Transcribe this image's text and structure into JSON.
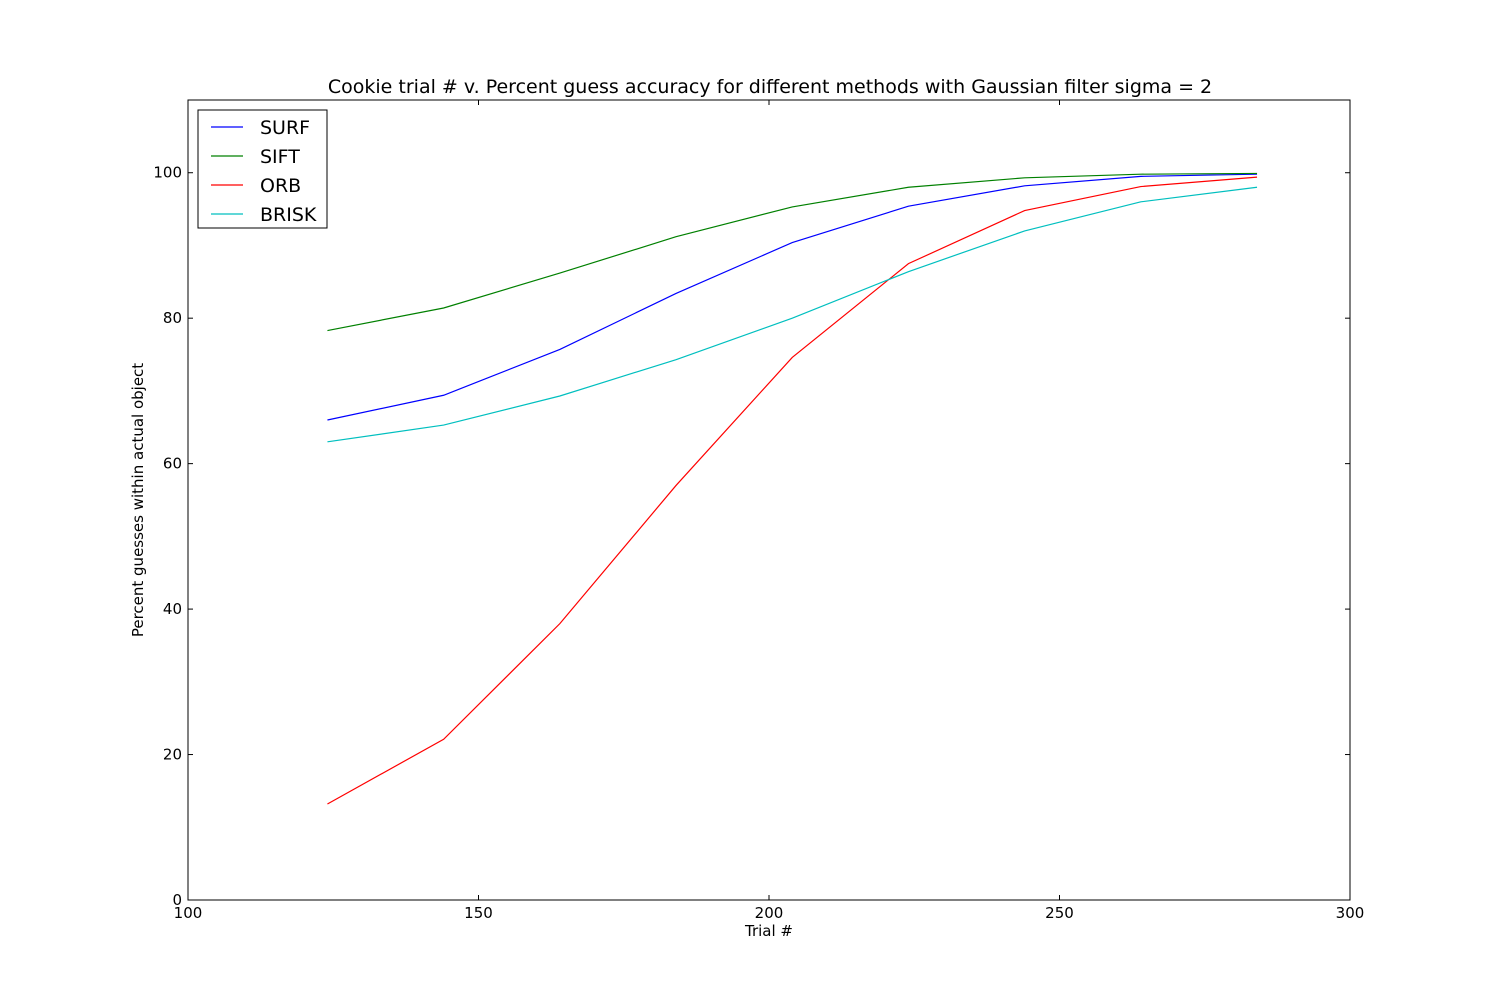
{
  "chart_data": {
    "type": "line",
    "title": "Cookie trial # v. Percent guess accuracy for different methods with Gaussian filter sigma = 2",
    "xlabel": "Trial #",
    "ylabel": "Percent guesses within actual object",
    "xlim": [
      100,
      300
    ],
    "ylim": [
      0,
      110
    ],
    "xticks": [
      100,
      150,
      200,
      250,
      300
    ],
    "yticks": [
      0,
      20,
      40,
      60,
      80,
      100
    ],
    "grid": false,
    "legend_position": "top-left",
    "x": [
      124,
      144,
      164,
      184,
      204,
      224,
      244,
      264,
      284
    ],
    "series": [
      {
        "name": "SURF",
        "color": "#0000ff",
        "values": [
          66.0,
          69.4,
          75.7,
          83.4,
          90.4,
          95.4,
          98.2,
          99.5,
          99.8
        ]
      },
      {
        "name": "SIFT",
        "color": "#008000",
        "values": [
          78.3,
          81.4,
          86.2,
          91.2,
          95.3,
          98.0,
          99.3,
          99.8,
          99.9
        ]
      },
      {
        "name": "ORB",
        "color": "#ff0000",
        "values": [
          13.2,
          22.1,
          38.0,
          57.0,
          74.6,
          87.5,
          94.8,
          98.1,
          99.4
        ]
      },
      {
        "name": "BRISK",
        "color": "#00bfbf",
        "values": [
          63.0,
          65.3,
          69.3,
          74.3,
          80.0,
          86.4,
          92.0,
          96.0,
          98.0
        ]
      }
    ]
  }
}
